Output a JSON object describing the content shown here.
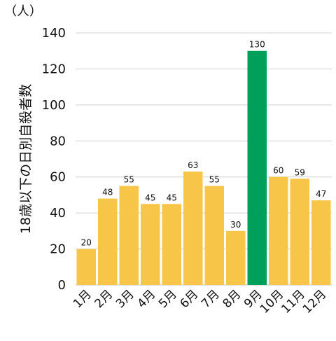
{
  "chart_data": {
    "type": "bar",
    "title": "",
    "unit_label": "（人）",
    "ylabel": "18歳以下の日別自殺者数",
    "xlabel": "",
    "categories": [
      "1月",
      "2月",
      "3月",
      "4月",
      "5月",
      "6月",
      "7月",
      "8月",
      "9月",
      "10月",
      "11月",
      "12月"
    ],
    "values": [
      20,
      48,
      55,
      45,
      45,
      63,
      55,
      30,
      130,
      60,
      59,
      47
    ],
    "ylim": [
      0,
      140
    ],
    "yticks": [
      0,
      20,
      40,
      60,
      80,
      100,
      120,
      140
    ],
    "grid": true,
    "highlight_index": 8,
    "colors": {
      "bar": "#F7C548",
      "highlight": "#00A05A",
      "grid": "#D0D0D0",
      "axis": "#BFBFBF"
    }
  }
}
